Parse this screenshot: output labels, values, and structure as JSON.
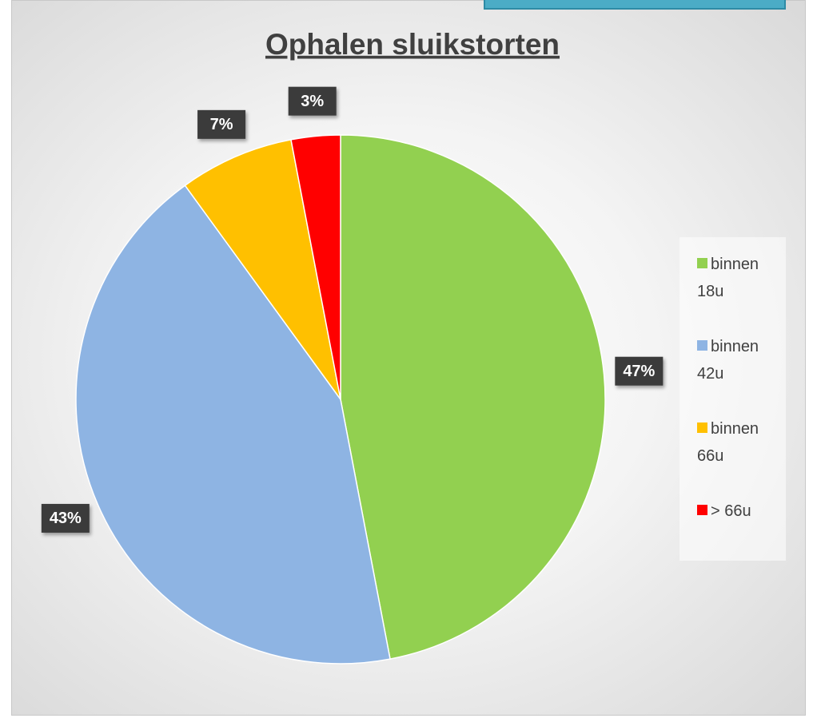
{
  "chart_data": {
    "type": "pie",
    "title": "Ophalen sluikstorten",
    "categories": [
      "binnen 18u",
      "binnen 42u",
      "binnen 66u",
      "> 66u"
    ],
    "values": [
      47,
      43,
      7,
      3
    ],
    "value_labels": [
      "47%",
      "43%",
      "7%",
      "3%"
    ],
    "colors": [
      "#92d050",
      "#8eb4e3",
      "#ffc000",
      "#ff0000"
    ],
    "legend": "right"
  }
}
